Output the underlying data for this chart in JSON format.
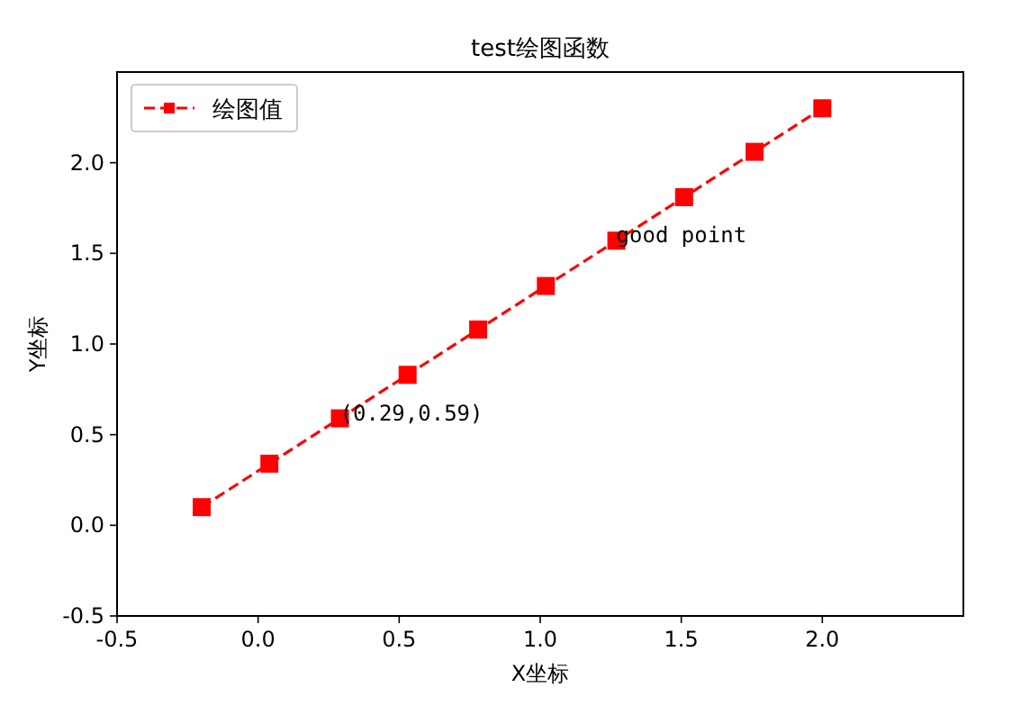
{
  "chart_data": {
    "type": "line",
    "title": "test绘图函数",
    "xlabel": "X坐标",
    "ylabel": "Y坐标",
    "x": [
      -0.2,
      0.04,
      0.29,
      0.53,
      0.78,
      1.02,
      1.27,
      1.51,
      1.76,
      2.0
    ],
    "series": [
      {
        "name": "绘图值",
        "color": "#ff0000",
        "values": [
          0.1,
          0.34,
          0.59,
          0.83,
          1.08,
          1.32,
          1.57,
          1.81,
          2.06,
          2.3
        ]
      }
    ],
    "xlim": [
      -0.5,
      2.5
    ],
    "ylim": [
      -0.5,
      2.5
    ],
    "xticks": [
      -0.5,
      {
        "value": 0,
        "label": "0.0"
      },
      0.5,
      {
        "value": 1,
        "label": "1.0"
      },
      1.5,
      {
        "value": 2,
        "label": "2.0"
      }
    ],
    "yticks": [
      -0.5,
      {
        "value": 0,
        "label": "0.0"
      },
      0.5,
      {
        "value": 1,
        "label": "1.0"
      },
      1.5,
      {
        "value": 2,
        "label": "2.0"
      }
    ],
    "marker": "square",
    "line_style": "dashed",
    "legend": "top left",
    "grid": false,
    "annotations": [
      {
        "text": "(0.29,0.59)",
        "x": 0.29,
        "y": 0.59
      },
      {
        "text": "good point",
        "x": 1.27,
        "y": 1.57
      }
    ]
  }
}
